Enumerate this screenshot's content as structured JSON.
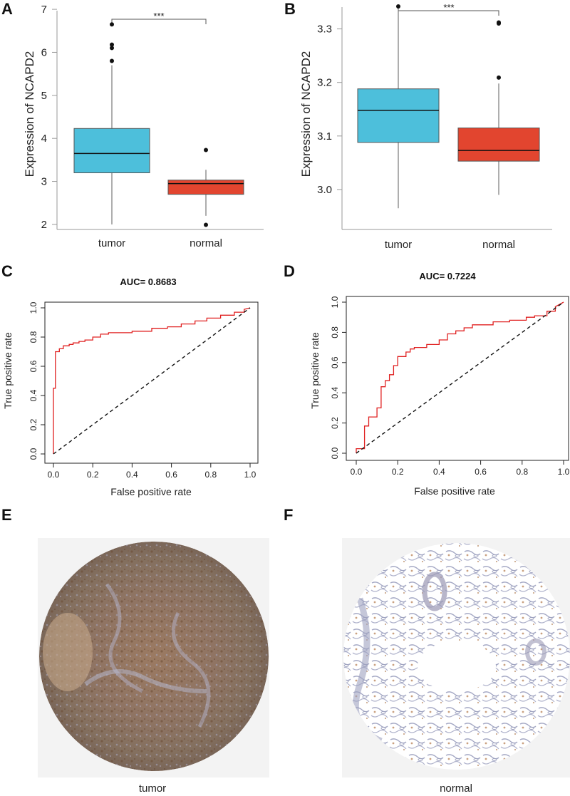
{
  "chart_data": [
    {
      "panel": "A",
      "type": "box",
      "ylabel": "Expression of NCAPD2",
      "ylim": [
        1.8,
        7.2
      ],
      "yticks": [
        "2",
        "3",
        "4",
        "5",
        "6",
        "7"
      ],
      "significance": "***",
      "categories": [
        "tumor",
        "normal"
      ],
      "boxes": [
        {
          "name": "tumor",
          "color": "#4dbfdb",
          "min": 2.0,
          "q1": 3.2,
          "median": 3.65,
          "q3": 4.23,
          "max": 5.7,
          "outliers": [
            5.8,
            6.1,
            6.18,
            6.65
          ]
        },
        {
          "name": "normal",
          "color": "#e2452f",
          "min": 2.2,
          "q1": 2.7,
          "median": 2.95,
          "q3": 3.03,
          "max": 3.27,
          "outliers": [
            3.73,
            1.99
          ]
        }
      ]
    },
    {
      "panel": "B",
      "type": "box",
      "ylabel": "Expression of NCAPD2",
      "ylim": [
        2.96,
        3.35
      ],
      "yticks": [
        "3.0",
        "3.1",
        "3.2",
        "3.3"
      ],
      "significance": "***",
      "categories": [
        "tumor",
        "normal"
      ],
      "boxes": [
        {
          "name": "tumor",
          "color": "#4dbfdb",
          "min": 2.965,
          "q1": 3.088,
          "median": 3.148,
          "q3": 3.188,
          "max": 3.34,
          "outliers": [
            3.342
          ]
        },
        {
          "name": "normal",
          "color": "#e2452f",
          "min": 2.99,
          "q1": 3.053,
          "median": 3.073,
          "q3": 3.115,
          "max": 3.198,
          "outliers": [
            3.209,
            3.31,
            3.312
          ]
        }
      ]
    },
    {
      "panel": "C",
      "type": "line",
      "title": "AUC= 0.8683",
      "xlabel": "False positive rate",
      "ylabel": "True positive rate",
      "xticks": [
        "0.0",
        "0.2",
        "0.4",
        "0.6",
        "0.8",
        "1.0"
      ],
      "yticks": [
        "0.0",
        "0.2",
        "0.4",
        "0.6",
        "0.8",
        "1.0"
      ],
      "series": [
        {
          "name": "ROC",
          "color": "#e02020",
          "x": [
            0,
            0,
            0.01,
            0.01,
            0.03,
            0.03,
            0.05,
            0.05,
            0.08,
            0.08,
            0.1,
            0.1,
            0.13,
            0.13,
            0.16,
            0.16,
            0.2,
            0.2,
            0.24,
            0.24,
            0.28,
            0.28,
            0.4,
            0.4,
            0.5,
            0.5,
            0.58,
            0.58,
            0.65,
            0.65,
            0.72,
            0.72,
            0.78,
            0.78,
            0.85,
            0.85,
            0.92,
            0.92,
            0.97,
            0.97,
            1.0
          ],
          "y": [
            0,
            0.45,
            0.45,
            0.7,
            0.7,
            0.72,
            0.72,
            0.74,
            0.74,
            0.75,
            0.75,
            0.76,
            0.76,
            0.77,
            0.77,
            0.78,
            0.78,
            0.8,
            0.8,
            0.82,
            0.82,
            0.83,
            0.83,
            0.84,
            0.84,
            0.86,
            0.86,
            0.87,
            0.87,
            0.89,
            0.89,
            0.91,
            0.91,
            0.93,
            0.93,
            0.95,
            0.95,
            0.97,
            0.97,
            0.99,
            1.0
          ]
        },
        {
          "name": "chance",
          "color": "#111111",
          "dashed": true,
          "x": [
            0,
            1
          ],
          "y": [
            0,
            1
          ]
        }
      ]
    },
    {
      "panel": "D",
      "type": "line",
      "title": "AUC= 0.7224",
      "xlabel": "False positive rate",
      "ylabel": "True positive rate",
      "xticks": [
        "0.0",
        "0.2",
        "0.4",
        "0.6",
        "0.8",
        "1.0"
      ],
      "yticks": [
        "0.0",
        "0.2",
        "0.4",
        "0.6",
        "0.8",
        "1.0"
      ],
      "series": [
        {
          "name": "ROC",
          "color": "#e02020",
          "x": [
            0,
            0,
            0.04,
            0.04,
            0.06,
            0.06,
            0.1,
            0.1,
            0.12,
            0.12,
            0.14,
            0.14,
            0.16,
            0.16,
            0.18,
            0.18,
            0.2,
            0.2,
            0.24,
            0.24,
            0.26,
            0.26,
            0.28,
            0.28,
            0.34,
            0.34,
            0.4,
            0.4,
            0.44,
            0.44,
            0.48,
            0.48,
            0.52,
            0.52,
            0.56,
            0.56,
            0.66,
            0.66,
            0.74,
            0.74,
            0.82,
            0.82,
            0.86,
            0.86,
            0.92,
            0.92,
            0.96,
            0.96,
            1.0
          ],
          "y": [
            0,
            0.03,
            0.03,
            0.18,
            0.18,
            0.24,
            0.24,
            0.3,
            0.3,
            0.44,
            0.44,
            0.48,
            0.48,
            0.52,
            0.52,
            0.58,
            0.58,
            0.64,
            0.64,
            0.67,
            0.67,
            0.69,
            0.69,
            0.7,
            0.7,
            0.72,
            0.72,
            0.75,
            0.75,
            0.79,
            0.79,
            0.81,
            0.81,
            0.83,
            0.83,
            0.85,
            0.85,
            0.87,
            0.87,
            0.88,
            0.88,
            0.9,
            0.9,
            0.91,
            0.91,
            0.94,
            0.94,
            0.97,
            1.0
          ]
        },
        {
          "name": "chance",
          "color": "#111111",
          "dashed": true,
          "x": [
            0,
            1
          ],
          "y": [
            0,
            1
          ]
        }
      ]
    }
  ],
  "panels": {
    "e": {
      "label": "E",
      "caption": "tumor"
    },
    "f": {
      "label": "F",
      "caption": "normal"
    }
  }
}
